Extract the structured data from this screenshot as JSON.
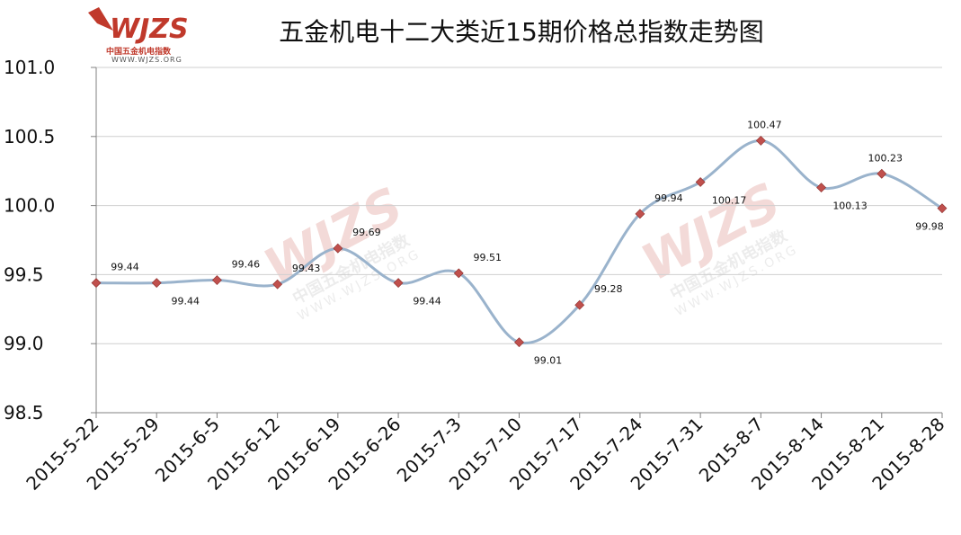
{
  "header": {
    "title": "五金机电十二大类近15期价格总指数走势图",
    "logo_cn": "中国五金机电指数",
    "logo_url": "WWW.WJZS.ORG",
    "logo_mark": "WJZS"
  },
  "watermark": {
    "mark": "WJZS",
    "cn": "中国五金机电指数",
    "url": "WWW.WJZS.ORG"
  },
  "colors": {
    "line": "#9ab3cc",
    "marker": "#c0504d",
    "grid": "#cfcfcf",
    "axis": "#808080",
    "brand": "#c0392b"
  },
  "chart_data": {
    "type": "line",
    "title": "五金机电十二大类近15期价格总指数走势图",
    "xlabel": "",
    "ylabel": "",
    "ylim": [
      98.5,
      101.0
    ],
    "ytick_step": 0.5,
    "yticks": [
      "98.5",
      "99.0",
      "99.5",
      "100.0",
      "100.5",
      "101.0"
    ],
    "grid": true,
    "legend": "none",
    "categories": [
      "2015-5-22",
      "2015-5-29",
      "2015-6-5",
      "2015-6-12",
      "2015-6-19",
      "2015-6-26",
      "2015-7-3",
      "2015-7-10",
      "2015-7-17",
      "2015-7-24",
      "2015-7-31",
      "2015-8-7",
      "2015-8-14",
      "2015-8-21",
      "2015-8-28"
    ],
    "series": [
      {
        "values": [
          99.44,
          99.44,
          99.46,
          99.43,
          99.69,
          99.44,
          99.51,
          99.01,
          99.28,
          99.94,
          100.17,
          100.47,
          100.13,
          100.23,
          99.98
        ],
        "labels": [
          "99.44",
          "99.44",
          "99.46",
          "99.43",
          "99.69",
          "99.44",
          "99.51",
          "99.01",
          "99.28",
          "99.94",
          "100.17",
          "100.47",
          "100.13",
          "100.23",
          "99.98"
        ]
      }
    ]
  }
}
